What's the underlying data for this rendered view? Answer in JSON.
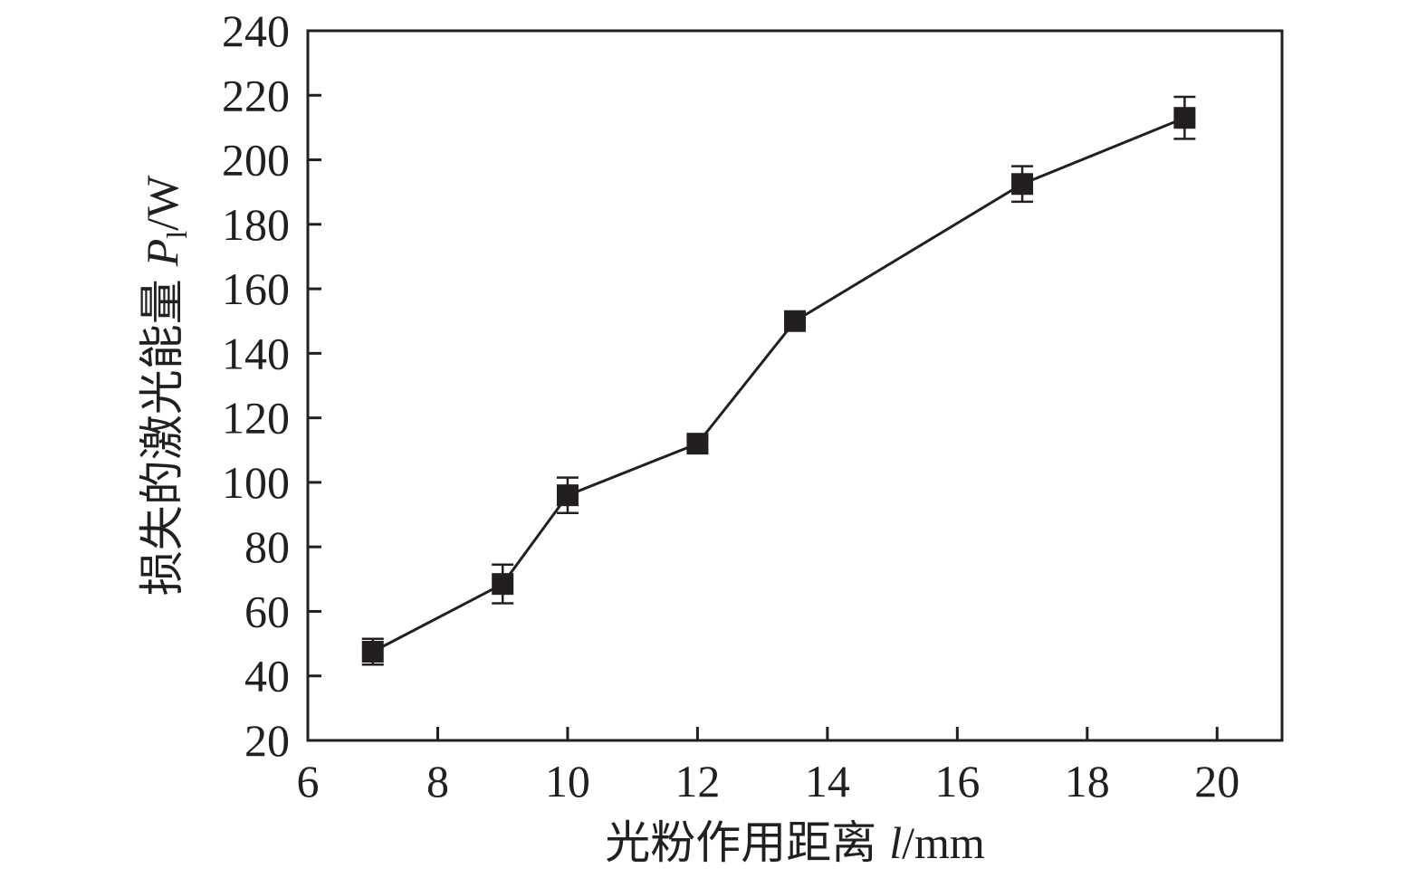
{
  "chart_data": {
    "type": "line",
    "xlabel": {
      "cjk": "光粉作用距离",
      "var": "l",
      "unit": "/mm"
    },
    "ylabel": {
      "cjk": "损失的激光能量",
      "var": "P",
      "sub": "l",
      "unit": "/W"
    },
    "xlim": [
      6,
      21
    ],
    "ylim": [
      20,
      240
    ],
    "xticks": [
      6,
      8,
      10,
      12,
      14,
      16,
      18,
      20
    ],
    "yticks": [
      20,
      40,
      60,
      80,
      100,
      120,
      140,
      160,
      180,
      200,
      220,
      240
    ],
    "grid": false,
    "legend": "none",
    "marker": "square",
    "color": "#231f20",
    "series": [
      {
        "x": [
          7,
          9,
          10,
          12,
          13.5,
          17,
          19.5
        ],
        "y": [
          47.5,
          68.5,
          96,
          112,
          150,
          192.5,
          213
        ],
        "err": [
          4,
          6,
          5.5,
          2,
          2,
          5.5,
          6.5
        ]
      }
    ]
  }
}
